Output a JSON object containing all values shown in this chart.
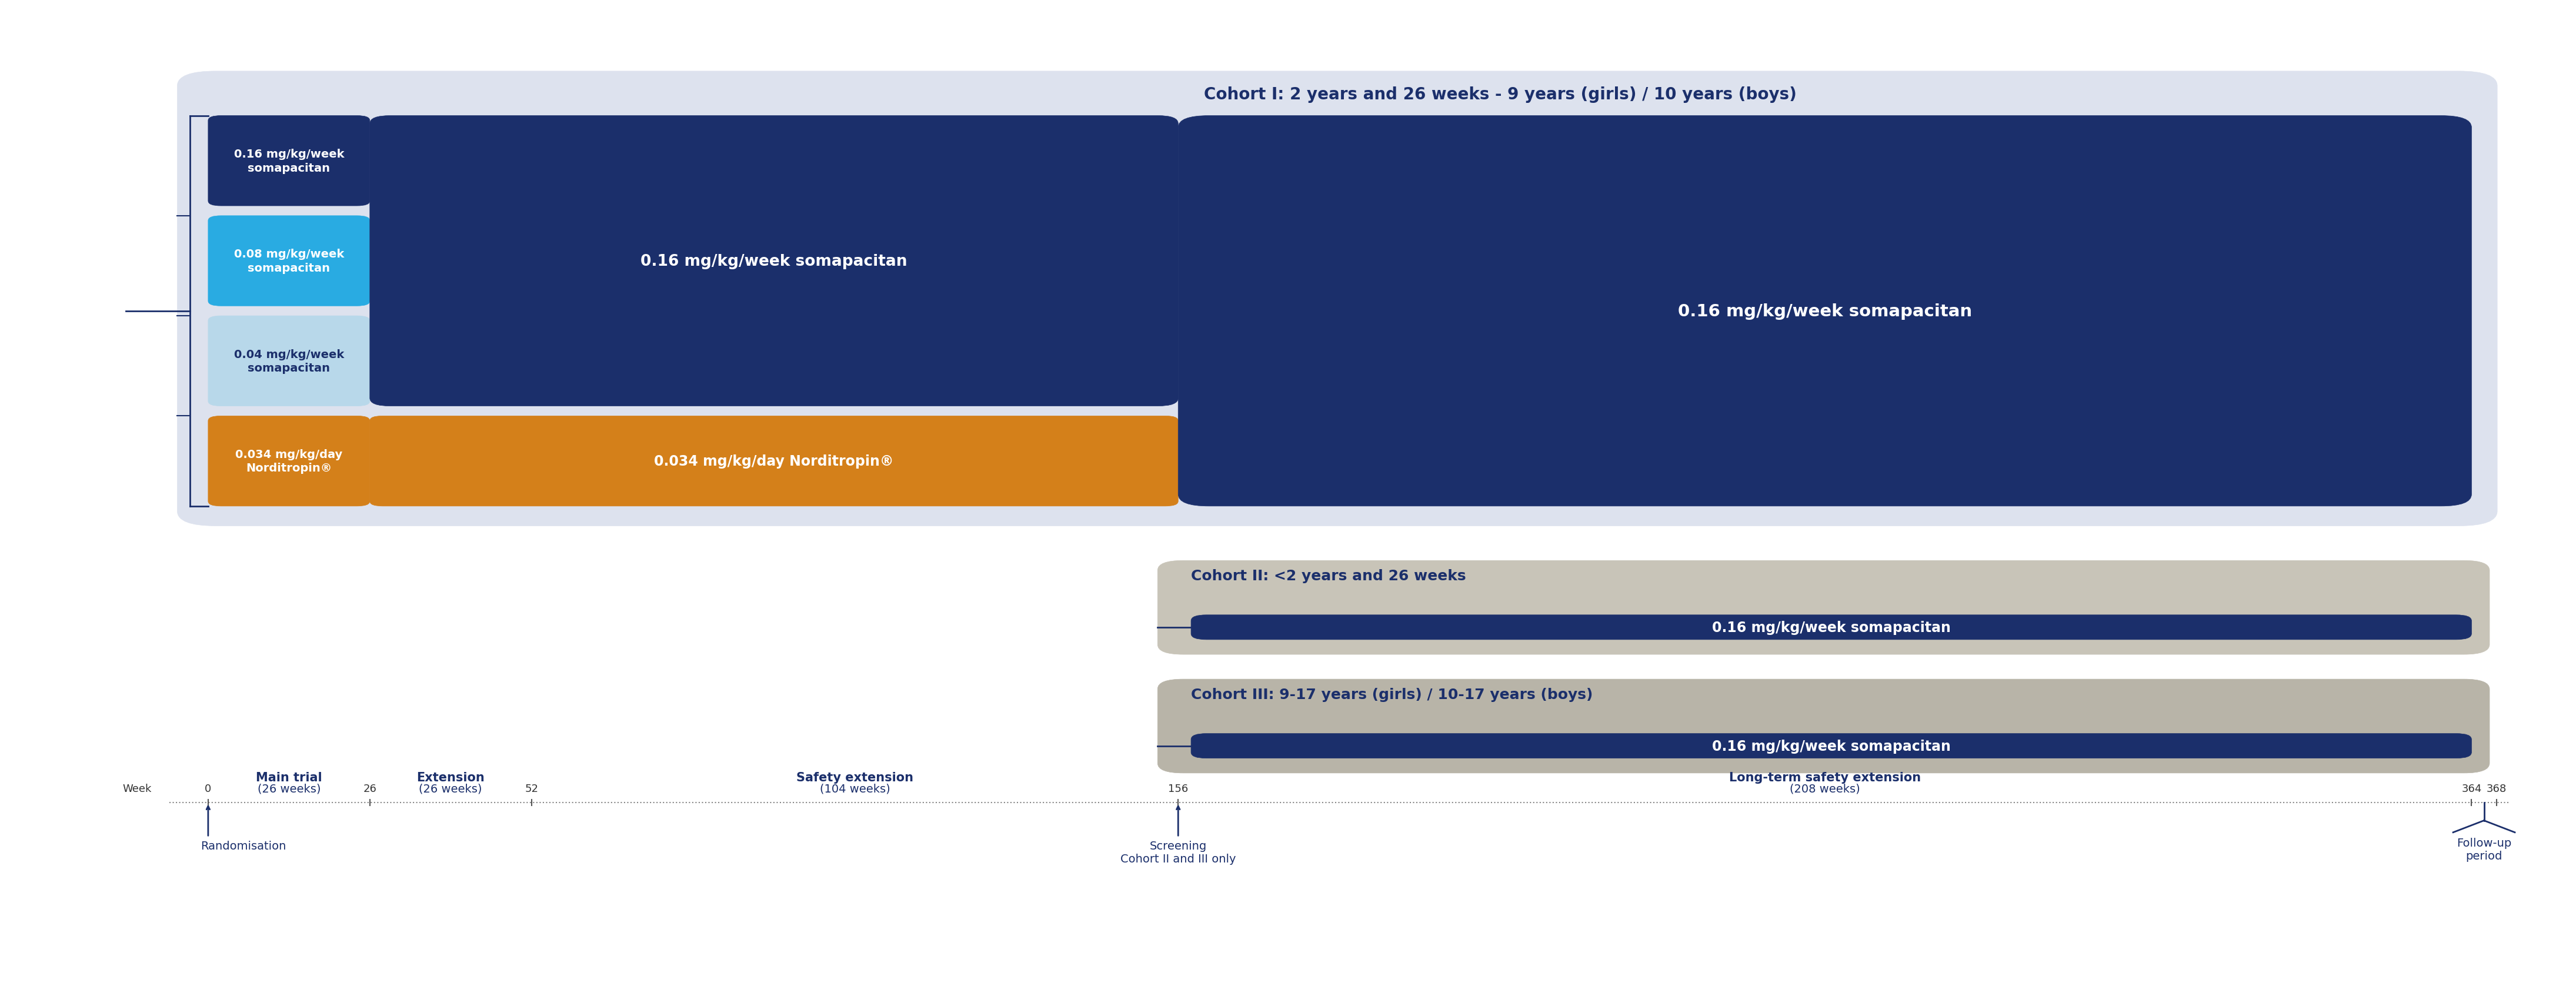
{
  "fig_width": 43.8,
  "fig_height": 16.9,
  "bg_color": "#ffffff",
  "colors": {
    "dark_navy": "#1b2f6b",
    "cyan": "#29abe2",
    "light_blue": "#b8d8ea",
    "orange": "#d4801a",
    "cohort1_bg": "#dde2ee",
    "cohort2_bg": "#c8c4b8",
    "cohort3_bg": "#b8b4a8",
    "white": "#ffffff",
    "bracket": "#1b2f6b",
    "timeline": "#888888",
    "tick": "#555555",
    "text_dark": "#1b2f6b"
  },
  "cohort1": {
    "label": "Cohort I: 2 years and 26 weeks - 9 years (girls) / 10 years (boys)",
    "rows": [
      {
        "label": "0.16 mg/kg/week\nsomapacitan",
        "color": "#1b2f6b",
        "text_color": "#ffffff"
      },
      {
        "label": "0.08 mg/kg/week\nsomapacitan",
        "color": "#29abe2",
        "text_color": "#ffffff"
      },
      {
        "label": "0.04 mg/kg/week\nsomapacitan",
        "color": "#b8d8ea",
        "text_color": "#1b2f6b"
      },
      {
        "label": "0.034 mg/kg/day\nNorditropin®",
        "color": "#d4801a",
        "text_color": "#ffffff"
      }
    ],
    "ext_soma_label": "0.16 mg/kg/week somapacitan",
    "ext_nordi_label": "0.034 mg/kg/day Norditropin®",
    "lts_label": "0.16 mg/kg/week somapacitan"
  },
  "cohort2": {
    "label": "Cohort II: <2 years and 26 weeks",
    "soma_label": "0.16 mg/kg/week somapacitan"
  },
  "cohort3": {
    "label": "Cohort III: 9-17 years (girls) / 10-17 years (boys)",
    "soma_label": "0.16 mg/kg/week somapacitan"
  },
  "timeline_weeks": [
    0,
    26,
    52,
    156,
    364,
    368
  ],
  "timeline_labels": [
    "0",
    "26",
    "52",
    "156",
    "364",
    "368"
  ],
  "period_data": [
    [
      0,
      26,
      "Main trial",
      "(26 weeks)"
    ],
    [
      26,
      52,
      "Extension",
      "(26 weeks)"
    ],
    [
      52,
      156,
      "Safety extension",
      "(104 weeks)"
    ],
    [
      156,
      364,
      "Long-term safety extension",
      "(208 weeks)"
    ]
  ]
}
